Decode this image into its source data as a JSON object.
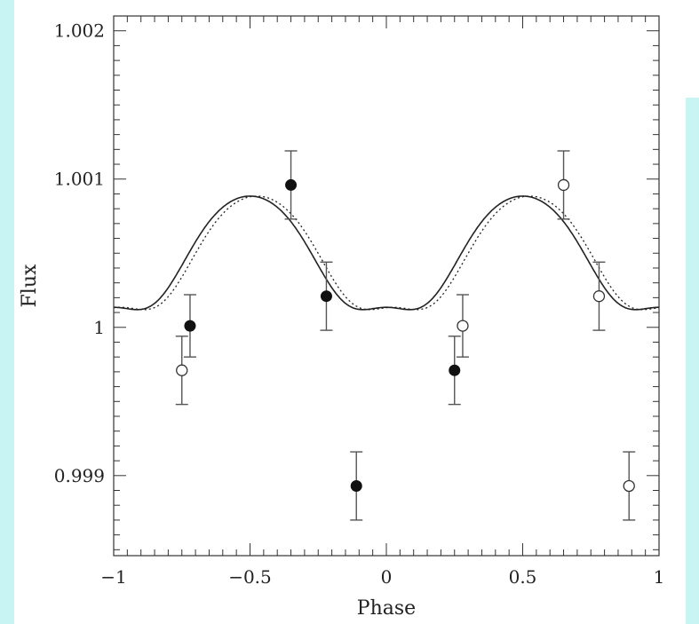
{
  "chart_data": {
    "type": "scatter",
    "title": "",
    "xlabel": "Phase",
    "ylabel": "Flux",
    "xlim": [
      -1,
      1
    ],
    "ylim": [
      0.99846,
      1.0021
    ],
    "x_ticks": [
      {
        "value": -1,
        "label": "−1"
      },
      {
        "value": -0.5,
        "label": "−0.5"
      },
      {
        "value": 0,
        "label": "0"
      },
      {
        "value": 0.5,
        "label": "0.5"
      },
      {
        "value": 1,
        "label": "1"
      }
    ],
    "y_ticks": [
      {
        "value": 0.999,
        "label": "0.999"
      },
      {
        "value": 1.0,
        "label": "1"
      },
      {
        "value": 1.001,
        "label": "1.001"
      },
      {
        "value": 1.002,
        "label": "1.002"
      }
    ],
    "grid": false,
    "model_curves": [
      {
        "style": "solid",
        "amplitude": 0.000375,
        "mean": 1.000385,
        "peak_phase": -0.5,
        "period": 1.0,
        "skew": 0.35
      },
      {
        "style": "dotted",
        "amplitude": 0.000375,
        "mean": 1.000385,
        "peak_phase": -0.475,
        "period": 1.0,
        "skew": 0.35
      }
    ],
    "series": [
      {
        "marker": "filled-circle",
        "points": [
          {
            "x": -0.72,
            "y": 1.00001,
            "err": 0.00021
          },
          {
            "x": -0.35,
            "y": 1.00096,
            "err": 0.00023
          },
          {
            "x": -0.22,
            "y": 1.00021,
            "err": 0.00023
          },
          {
            "x": -0.11,
            "y": 0.99893,
            "err": 0.00023
          },
          {
            "x": 0.25,
            "y": 0.99971,
            "err": 0.00023
          }
        ]
      },
      {
        "marker": "open-circle",
        "points": [
          {
            "x": -0.75,
            "y": 0.99971,
            "err": 0.00023
          },
          {
            "x": 0.28,
            "y": 1.00001,
            "err": 0.00021
          },
          {
            "x": 0.65,
            "y": 1.00096,
            "err": 0.00023
          },
          {
            "x": 0.78,
            "y": 1.00021,
            "err": 0.00023
          },
          {
            "x": 0.89,
            "y": 0.99893,
            "err": 0.00023
          }
        ]
      }
    ]
  }
}
